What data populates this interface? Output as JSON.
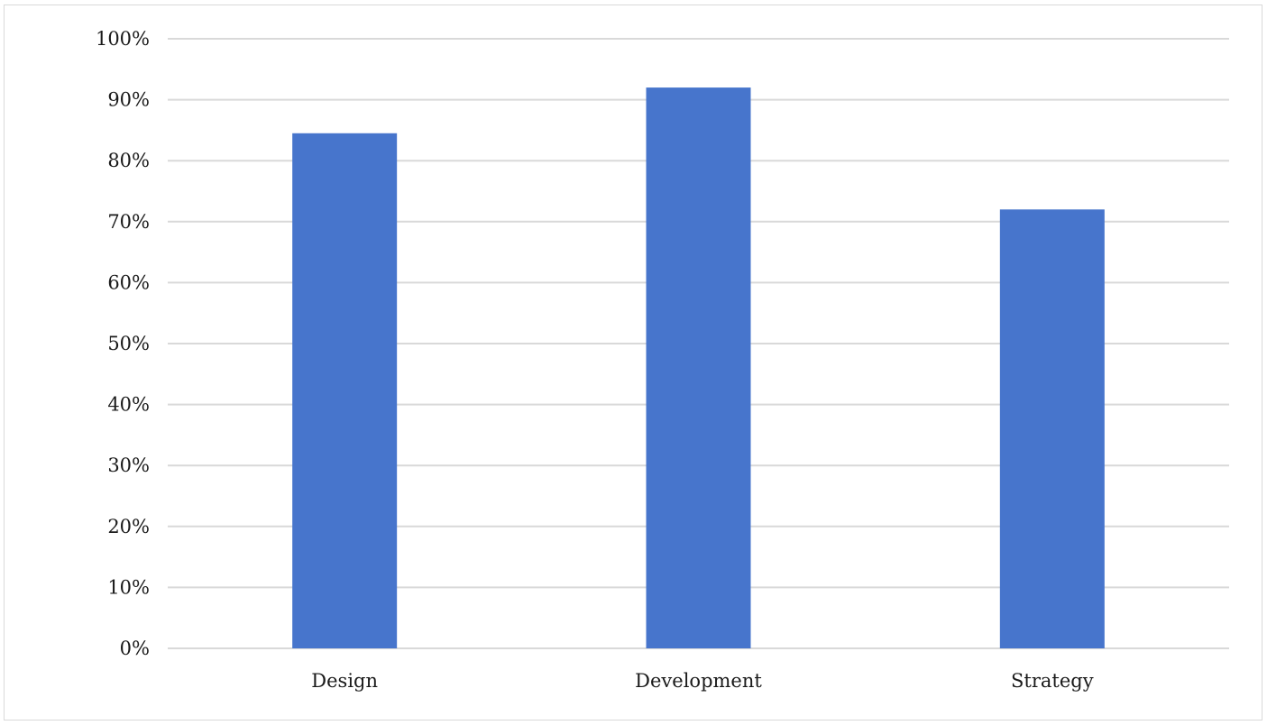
{
  "chart_data": {
    "type": "bar",
    "categories": [
      "Design",
      "Development",
      "Strategy"
    ],
    "values": [
      84.5,
      92,
      72
    ],
    "ylim": [
      0,
      100
    ],
    "yticks": [
      0,
      10,
      20,
      30,
      40,
      50,
      60,
      70,
      80,
      90,
      100
    ],
    "ytick_labels": [
      "0%",
      "10%",
      "20%",
      "30%",
      "40%",
      "50%",
      "60%",
      "70%",
      "80%",
      "90%",
      "100%"
    ],
    "grid": true,
    "legend": "none",
    "bar_color": "#4775cc",
    "grid_color": "#d9d9d9"
  }
}
